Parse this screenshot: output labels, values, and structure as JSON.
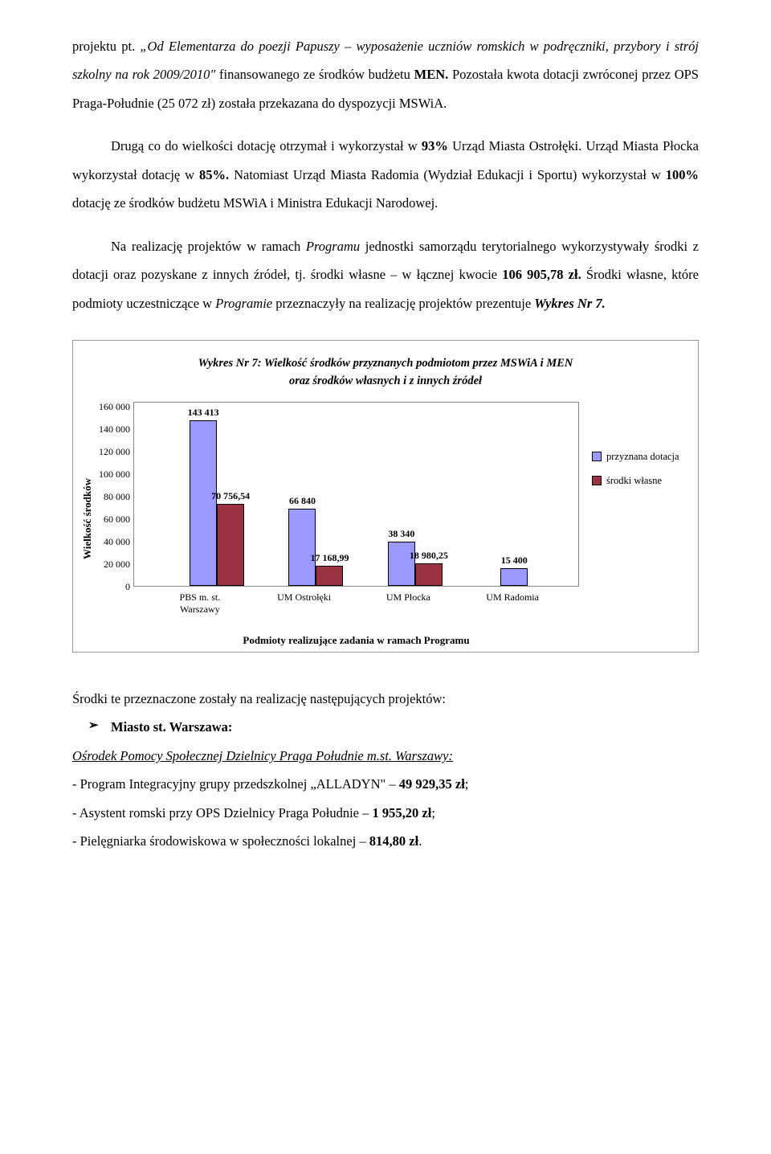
{
  "para1": {
    "prefix": "projektu pt.",
    "quoted": "„Od Elementarza do poezji Papuszy – wyposażenie uczniów romskich w podręczniki, przybory i strój szkolny na rok 2009/2010\"",
    "mid": " finansowanego ze środków budżetu ",
    "men": "MEN.",
    "tail1": " Pozostała kwota dotacji zwróconej przez OPS Praga-Południe (25 072 zł) została przekazana do dyspozycji MSWiA."
  },
  "para2": {
    "a": "Drugą co do wielkości dotację otrzymał i wykorzystał w ",
    "p1": "93%",
    "b": " Urząd Miasta Ostrołęki. Urząd Miasta Płocka wykorzystał dotację w ",
    "p2": "85%.",
    "c": " Natomiast Urząd Miasta Radomia (Wydział Edukacji i Sportu) wykorzystał w ",
    "p3": "100%",
    "d": " dotację ze środków budżetu MSWiA i Ministra Edukacji Narodowej."
  },
  "para3": {
    "a": "Na realizację projektów w ramach ",
    "i1": "Programu",
    "b": " jednostki samorządu terytorialnego wykorzystywały środki z dotacji oraz pozyskane z innych źródeł, tj. środki własne – w łącznej kwocie ",
    "amt": "106 905,78 zł.",
    "c": " Środki własne, które podmioty uczestniczące w ",
    "i2": "Programie",
    "d": " przeznaczyły na realizację projektów prezentuje ",
    "ref": "Wykres Nr 7."
  },
  "chart": {
    "title_l1": "Wykres Nr 7: Wielkość środków przyznanych podmiotom przez MSWiA i MEN",
    "title_l2": "oraz środków własnych i z innych źródeł",
    "type": "bar",
    "y_label": "Wielkość środków",
    "x_label": "Podmioty realizujące zadania w ramach Programu",
    "ylim_max": 160000,
    "ytick_step": 20000,
    "yticks": [
      "160 000",
      "140 000",
      "120 000",
      "100 000",
      "80 000",
      "60 000",
      "40 000",
      "20 000",
      "0"
    ],
    "categories": [
      "PBS m. st. Warszawy",
      "UM Ostrołęki",
      "UM Płocka",
      "UM Radomia"
    ],
    "series": [
      {
        "name": "przyznana dotacja",
        "color": "#9a99ff",
        "values": [
          143413,
          66840,
          38340,
          15400
        ],
        "labels": [
          "143 413",
          "66 840",
          "38 340",
          "15 400"
        ]
      },
      {
        "name": "środki własne",
        "color": "#9a3242",
        "values": [
          70756.54,
          17168.99,
          18980.25,
          0
        ],
        "labels": [
          "70 756,54",
          "17 168,99",
          "18 980,25",
          ""
        ]
      }
    ],
    "bar_border": "#000000",
    "plot_border": "#888888",
    "background": "#ffffff"
  },
  "after": {
    "intro": "Środki te przeznaczone zostały na realizację następujących projektów:",
    "heading": "Miasto st. Warszawa:",
    "sub": "Ośrodek Pomocy Społecznej Dzielnicy Praga Południe m.st. Warszawy:",
    "l1a": "- Program Integracyjny grupy przedszkolnej „ALLADYN\" – ",
    "l1b": "49 929,35 zł",
    "l2a": "- Asystent romski przy OPS Dzielnicy Praga Południe – ",
    "l2b": "1 955,20 zł",
    "l3a": "- Pielęgniarka środowiskowa w społeczności lokalnej – ",
    "l3b": "814,80 zł",
    "semicolon": ";",
    "period": "."
  }
}
